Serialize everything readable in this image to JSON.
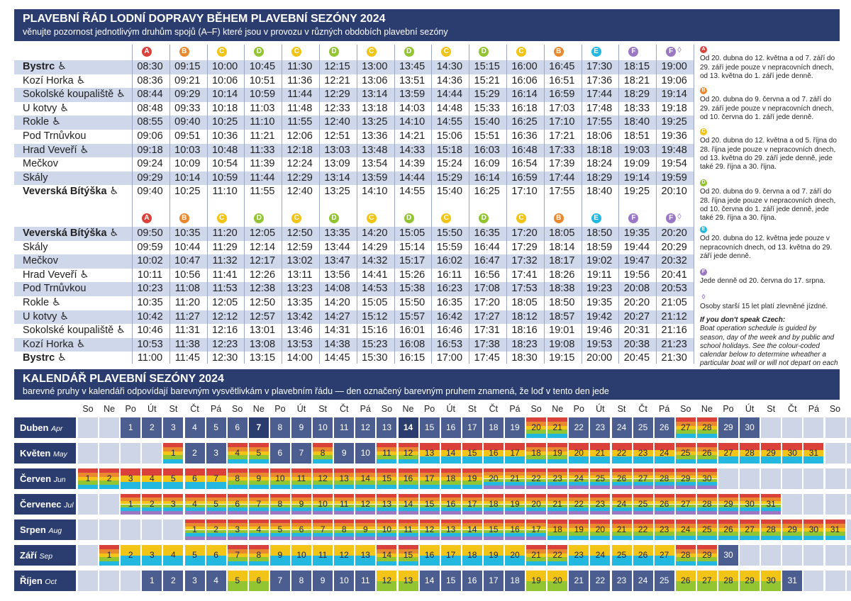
{
  "header1": {
    "title": "PLAVEBNÍ ŘÁD LODNÍ DOPRAVY BĚHEM PLAVEBNÍ SEZÓNY 2024",
    "subtitle": "věnujte pozornost jednotlivým druhům spojů (A–F) které jsou v provozu v různých obdobích plavební sezóny"
  },
  "colors": {
    "A": "#d9413a",
    "B": "#e8892f",
    "C": "#f2c418",
    "D": "#93c532",
    "E": "#22b8e0",
    "F": "#9a78c4"
  },
  "trip_labels": [
    "A",
    "B",
    "C",
    "D",
    "C",
    "D",
    "C",
    "D",
    "C",
    "D",
    "C",
    "B",
    "E",
    "F",
    "F ◊"
  ],
  "trip_types": [
    "A",
    "B",
    "C",
    "D",
    "C",
    "D",
    "C",
    "D",
    "C",
    "D",
    "C",
    "B",
    "E",
    "F",
    "F"
  ],
  "outbound": {
    "stops": [
      "Bystrc ♿",
      "Kozí Horka ♿",
      "Sokolské koupaliště ♿",
      "U kotvy ♿",
      "Rokle ♿",
      "Pod Trnůvkou",
      "Hrad Veveří ♿",
      "Mečkov",
      "Skály",
      "Veverská Bítýška ♿"
    ],
    "times": [
      [
        "08:30",
        "09:15",
        "10:00",
        "10:45",
        "11:30",
        "12:15",
        "13:00",
        "13:45",
        "14:30",
        "15:15",
        "16:00",
        "16:45",
        "17:30",
        "18:15",
        "19:00"
      ],
      [
        "08:36",
        "09:21",
        "10:06",
        "10:51",
        "11:36",
        "12:21",
        "13:06",
        "13:51",
        "14:36",
        "15:21",
        "16:06",
        "16:51",
        "17:36",
        "18:21",
        "19:06"
      ],
      [
        "08:44",
        "09:29",
        "10:14",
        "10:59",
        "11:44",
        "12:29",
        "13:14",
        "13:59",
        "14:44",
        "15:29",
        "16:14",
        "16:59",
        "17:44",
        "18:29",
        "19:14"
      ],
      [
        "08:48",
        "09:33",
        "10:18",
        "11:03",
        "11:48",
        "12:33",
        "13:18",
        "14:03",
        "14:48",
        "15:33",
        "16:18",
        "17:03",
        "17:48",
        "18:33",
        "19:18"
      ],
      [
        "08:55",
        "09:40",
        "10:25",
        "11:10",
        "11:55",
        "12:40",
        "13:25",
        "14:10",
        "14:55",
        "15:40",
        "16:25",
        "17:10",
        "17:55",
        "18:40",
        "19:25"
      ],
      [
        "09:06",
        "09:51",
        "10:36",
        "11:21",
        "12:06",
        "12:51",
        "13:36",
        "14:21",
        "15:06",
        "15:51",
        "16:36",
        "17:21",
        "18:06",
        "18:51",
        "19:36"
      ],
      [
        "09:18",
        "10:03",
        "10:48",
        "11:33",
        "12:18",
        "13:03",
        "13:48",
        "14:33",
        "15:18",
        "16:03",
        "16:48",
        "17:33",
        "18:18",
        "19:03",
        "19:48"
      ],
      [
        "09:24",
        "10:09",
        "10:54",
        "11:39",
        "12:24",
        "13:09",
        "13:54",
        "14:39",
        "15:24",
        "16:09",
        "16:54",
        "17:39",
        "18:24",
        "19:09",
        "19:54"
      ],
      [
        "09:29",
        "10:14",
        "10:59",
        "11:44",
        "12:29",
        "13:14",
        "13:59",
        "14:44",
        "15:29",
        "16:14",
        "16:59",
        "17:44",
        "18:29",
        "19:14",
        "19:59"
      ],
      [
        "09:40",
        "10:25",
        "11:10",
        "11:55",
        "12:40",
        "13:25",
        "14:10",
        "14:55",
        "15:40",
        "16:25",
        "17:10",
        "17:55",
        "18:40",
        "19:25",
        "20:10"
      ]
    ]
  },
  "inbound": {
    "stops": [
      "Veverská Bítýška ♿",
      "Skály",
      "Mečkov",
      "Hrad Veveří ♿",
      "Pod Trnůvkou",
      "Rokle ♿",
      "U kotvy ♿",
      "Sokolské koupaliště ♿",
      "Kozí Horka ♿",
      "Bystrc ♿"
    ],
    "times": [
      [
        "09:50",
        "10:35",
        "11:20",
        "12:05",
        "12:50",
        "13:35",
        "14:20",
        "15:05",
        "15:50",
        "16:35",
        "17:20",
        "18:05",
        "18:50",
        "19:35",
        "20:20"
      ],
      [
        "09:59",
        "10:44",
        "11:29",
        "12:14",
        "12:59",
        "13:44",
        "14:29",
        "15:14",
        "15:59",
        "16:44",
        "17:29",
        "18:14",
        "18:59",
        "19:44",
        "20:29"
      ],
      [
        "10:02",
        "10:47",
        "11:32",
        "12:17",
        "13:02",
        "13:47",
        "14:32",
        "15:17",
        "16:02",
        "16:47",
        "17:32",
        "18:17",
        "19:02",
        "19:47",
        "20:32"
      ],
      [
        "10:11",
        "10:56",
        "11:41",
        "12:26",
        "13:11",
        "13:56",
        "14:41",
        "15:26",
        "16:11",
        "16:56",
        "17:41",
        "18:26",
        "19:11",
        "19:56",
        "20:41"
      ],
      [
        "10:23",
        "11:08",
        "11:53",
        "12:38",
        "13:23",
        "14:08",
        "14:53",
        "15:38",
        "16:23",
        "17:08",
        "17:53",
        "18:38",
        "19:23",
        "20:08",
        "20:53"
      ],
      [
        "10:35",
        "11:20",
        "12:05",
        "12:50",
        "13:35",
        "14:20",
        "15:05",
        "15:50",
        "16:35",
        "17:20",
        "18:05",
        "18:50",
        "19:35",
        "20:20",
        "21:05"
      ],
      [
        "10:42",
        "11:27",
        "12:12",
        "12:57",
        "13:42",
        "14:27",
        "15:12",
        "15:57",
        "16:42",
        "17:27",
        "18:12",
        "18:57",
        "19:42",
        "20:27",
        "21:12"
      ],
      [
        "10:46",
        "11:31",
        "12:16",
        "13:01",
        "13:46",
        "14:31",
        "15:16",
        "16:01",
        "16:46",
        "17:31",
        "18:16",
        "19:01",
        "19:46",
        "20:31",
        "21:16"
      ],
      [
        "10:53",
        "11:38",
        "12:23",
        "13:08",
        "13:53",
        "14:38",
        "15:23",
        "16:08",
        "16:53",
        "17:38",
        "18:23",
        "19:08",
        "19:53",
        "20:38",
        "21:23"
      ],
      [
        "11:00",
        "11:45",
        "12:30",
        "13:15",
        "14:00",
        "14:45",
        "15:30",
        "16:15",
        "17:00",
        "17:45",
        "18:30",
        "19:15",
        "20:00",
        "20:45",
        "21:30"
      ]
    ]
  },
  "notes": [
    {
      "key": "A",
      "text": "Od 20. dubna do 12. května a od 7. září do 29. září jede pouze v nepracovních dnech, od 13. května do 1. září jede denně."
    },
    {
      "key": "B",
      "text": "Od 20. dubna do 9. června a od 7. září do 29. září jede pouze v nepracovních dnech, od 10. června do 1. září jede denně."
    },
    {
      "key": "C",
      "text": "Od 20. dubna do 12. května a od 5. října do 28. října jede pouze v nepracovních dnech, od 13. května do 29. září jede denně, jede také 29. října a 30. října."
    },
    {
      "key": "D",
      "text": "Od 20. dubna do 9. června a od 7. září do 28. října jede pouze v nepracovních dnech, od 10. června do 1. září jede denně, jede také 29. října a 30. října."
    },
    {
      "key": "E",
      "text": "Od 20. dubna do 12. května jede pouze v nepracovních dnech, od 13. května do 29. září jede denně."
    },
    {
      "key": "F",
      "text": "Jede denně od 20. června do 17. srpna."
    },
    {
      "key": "◊",
      "text": "Osoby starší 15 let platí zlevněné jízdné."
    }
  ],
  "english": {
    "title": "If you don't speak Czech:",
    "text": "Boat operation schedule is guided by season, day of the week and by public and school holidays. See the colour-coded calendar below to determine wheather a particular boat will or will not depart on each specific day."
  },
  "header2": {
    "title": "KALENDÁŘ PLAVEBNÍ SEZÓNY 2024",
    "subtitle": "barevné pruhy v kalendáři odpovídají barevným vysvětlivkám v plavebním řádu — den označený barevným pruhem znamená, že loď v tento den jede"
  },
  "weekdays": [
    "So",
    "Ne",
    "Po",
    "Út",
    "St",
    "Čt",
    "Pá",
    "So",
    "Ne",
    "Po",
    "Út",
    "St",
    "Čt",
    "Pá",
    "So",
    "Ne",
    "Po",
    "Út",
    "St",
    "Čt",
    "Pá",
    "So",
    "Ne",
    "Po",
    "Út",
    "St",
    "Čt",
    "Pá",
    "So",
    "Ne",
    "Po",
    "Út",
    "St",
    "Čt",
    "Pá",
    "So",
    "Ne"
  ],
  "months": [
    {
      "name": "Duben",
      "abbr": "Apr",
      "start": 2,
      "days": 30,
      "sundays": [
        7,
        14
      ],
      "patterns": {
        "20": "ABCDE",
        "21": "ABCDE",
        "27": "ABCDE",
        "28": "ABCDE"
      }
    },
    {
      "name": "Květen",
      "abbr": "May",
      "start": 4,
      "days": 31,
      "sundays": [],
      "patterns": {
        "1": "ABCDE",
        "4": "ABCDE",
        "5": "ABCDE",
        "8": "ABCDE",
        "11": "ABCDE",
        "12": "ABCDE",
        "13": "ACE",
        "14": "ACE",
        "15": "ACE",
        "16": "ACE",
        "17": "ACE",
        "18": "ABCDE",
        "19": "ABCDE",
        "20": "ACE",
        "21": "ACE",
        "22": "ACE",
        "23": "ACE",
        "24": "ACE",
        "25": "ABCDE",
        "26": "ABCDE",
        "27": "ACE",
        "28": "ACE",
        "29": "ACE",
        "30": "ACE",
        "31": "ACE"
      }
    },
    {
      "name": "Červen",
      "abbr": "Jun",
      "start": 0,
      "days": 30,
      "sundays": [],
      "patterns": {
        "1": "ABCDE",
        "2": "ABCDE",
        "3": "ACE",
        "4": "ACE",
        "5": "ACE",
        "6": "ACE",
        "7": "ACE",
        "8": "ABCDE",
        "9": "ABCDE",
        "10": "ABCDE",
        "11": "ABCDE",
        "12": "ABCDE",
        "13": "ABCDE",
        "14": "ABCDE",
        "15": "ABCDE",
        "16": "ABCDE",
        "17": "ABCDE",
        "18": "ABCDE",
        "19": "ABCDE",
        "20": "ABCDEF",
        "21": "ABCDEF",
        "22": "ABCDEF",
        "23": "ABCDEF",
        "24": "ABCDEF",
        "25": "ABCDEF",
        "26": "ABCDEF",
        "27": "ABCDEF",
        "28": "ABCDEF",
        "29": "ABCDEF",
        "30": "ABCDEF"
      }
    },
    {
      "name": "Červenec",
      "abbr": "Jul",
      "start": 2,
      "days": 31,
      "sundays": [],
      "all": "ABCDEF",
      "patterns": {}
    },
    {
      "name": "Srpen",
      "abbr": "Aug",
      "start": 5,
      "days": 31,
      "sundays": [],
      "all": "ABCDE",
      "patterns": {
        "1": "ABCDEF",
        "2": "ABCDEF",
        "3": "ABCDEF",
        "4": "ABCDEF",
        "5": "ABCDEF",
        "6": "ABCDEF",
        "7": "ABCDEF",
        "8": "ABCDEF",
        "9": "ABCDEF",
        "10": "ABCDEF",
        "11": "ABCDEF",
        "12": "ABCDEF",
        "13": "ABCDEF",
        "14": "ABCDEF",
        "15": "ABCDEF",
        "16": "ABCDEF",
        "17": "ABCDEF"
      }
    },
    {
      "name": "Září",
      "abbr": "Sep",
      "start": 1,
      "days": 30,
      "sundays": [],
      "all": "CE",
      "patterns": {
        "1": "ABCDE",
        "7": "ABCDE",
        "8": "ABCDE",
        "14": "ABCDE",
        "15": "ABCDE",
        "21": "ABCDE",
        "22": "ABCDE",
        "28": "ABCDE",
        "29": "ABCDE",
        "30": ""
      }
    },
    {
      "name": "Říjen",
      "abbr": "Oct",
      "start": 3,
      "days": 31,
      "sundays": [],
      "patterns": {
        "5": "CD",
        "6": "CD",
        "12": "CD",
        "13": "CD",
        "19": "CD",
        "20": "CD",
        "26": "CD",
        "27": "CD",
        "28": "CD",
        "29": "CD",
        "30": "CD"
      }
    }
  ]
}
